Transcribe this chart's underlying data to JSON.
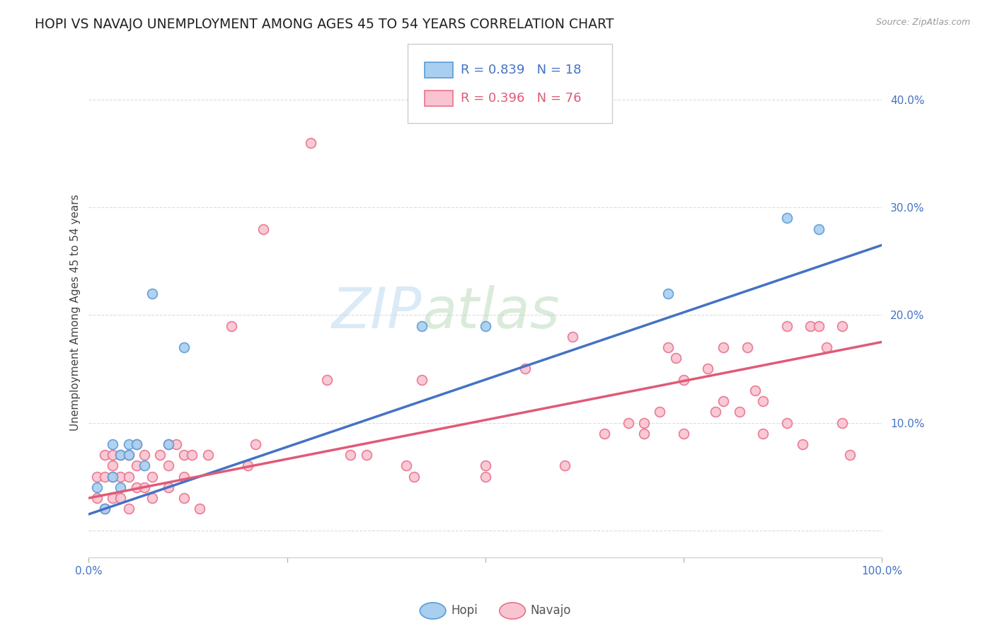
{
  "title": "HOPI VS NAVAJO UNEMPLOYMENT AMONG AGES 45 TO 54 YEARS CORRELATION CHART",
  "source": "Source: ZipAtlas.com",
  "ylabel": "Unemployment Among Ages 45 to 54 years",
  "xlim": [
    0.0,
    1.0
  ],
  "ylim": [
    -0.025,
    0.43
  ],
  "xticks": [
    0.0,
    0.25,
    0.5,
    0.75,
    1.0
  ],
  "xticklabels": [
    "0.0%",
    "",
    "",
    "",
    "100.0%"
  ],
  "yticks": [
    0.0,
    0.1,
    0.2,
    0.3,
    0.4
  ],
  "yticklabels": [
    "",
    "10.0%",
    "20.0%",
    "30.0%",
    "40.0%"
  ],
  "hopi_color": "#A8CFF0",
  "navajo_color": "#F9C4D2",
  "hopi_edge_color": "#5B9BD5",
  "navajo_edge_color": "#E8728A",
  "hopi_line_color": "#4472C4",
  "navajo_line_color": "#E05A76",
  "legend_hopi_R": "0.839",
  "legend_hopi_N": "18",
  "legend_navajo_R": "0.396",
  "legend_navajo_N": "76",
  "hopi_x": [
    0.01,
    0.02,
    0.03,
    0.03,
    0.04,
    0.04,
    0.05,
    0.05,
    0.06,
    0.07,
    0.08,
    0.1,
    0.12,
    0.42,
    0.5,
    0.73,
    0.88,
    0.92
  ],
  "hopi_y": [
    0.04,
    0.02,
    0.05,
    0.08,
    0.04,
    0.07,
    0.07,
    0.08,
    0.08,
    0.06,
    0.22,
    0.08,
    0.17,
    0.19,
    0.19,
    0.22,
    0.29,
    0.28
  ],
  "navajo_x": [
    0.01,
    0.01,
    0.02,
    0.02,
    0.02,
    0.03,
    0.03,
    0.03,
    0.03,
    0.04,
    0.04,
    0.04,
    0.05,
    0.05,
    0.05,
    0.06,
    0.06,
    0.06,
    0.07,
    0.07,
    0.08,
    0.08,
    0.09,
    0.1,
    0.1,
    0.1,
    0.11,
    0.12,
    0.12,
    0.12,
    0.13,
    0.14,
    0.15,
    0.18,
    0.2,
    0.21,
    0.22,
    0.28,
    0.3,
    0.33,
    0.35,
    0.4,
    0.41,
    0.42,
    0.5,
    0.5,
    0.55,
    0.6,
    0.61,
    0.65,
    0.68,
    0.7,
    0.7,
    0.72,
    0.73,
    0.74,
    0.75,
    0.75,
    0.78,
    0.79,
    0.8,
    0.8,
    0.82,
    0.83,
    0.84,
    0.85,
    0.85,
    0.88,
    0.88,
    0.9,
    0.91,
    0.92,
    0.93,
    0.95,
    0.95,
    0.96
  ],
  "navajo_y": [
    0.03,
    0.05,
    0.02,
    0.05,
    0.07,
    0.03,
    0.05,
    0.06,
    0.07,
    0.03,
    0.05,
    0.07,
    0.02,
    0.05,
    0.07,
    0.04,
    0.06,
    0.08,
    0.04,
    0.07,
    0.03,
    0.05,
    0.07,
    0.04,
    0.06,
    0.08,
    0.08,
    0.03,
    0.05,
    0.07,
    0.07,
    0.02,
    0.07,
    0.19,
    0.06,
    0.08,
    0.28,
    0.36,
    0.14,
    0.07,
    0.07,
    0.06,
    0.05,
    0.14,
    0.05,
    0.06,
    0.15,
    0.06,
    0.18,
    0.09,
    0.1,
    0.09,
    0.1,
    0.11,
    0.17,
    0.16,
    0.14,
    0.09,
    0.15,
    0.11,
    0.12,
    0.17,
    0.11,
    0.17,
    0.13,
    0.12,
    0.09,
    0.1,
    0.19,
    0.08,
    0.19,
    0.19,
    0.17,
    0.1,
    0.19,
    0.07
  ],
  "hopi_line_x0": 0.0,
  "hopi_line_x1": 1.0,
  "hopi_line_y0": 0.015,
  "hopi_line_y1": 0.265,
  "navajo_line_x0": 0.0,
  "navajo_line_x1": 1.0,
  "navajo_line_y0": 0.03,
  "navajo_line_y1": 0.175,
  "background_color": "#FFFFFF",
  "grid_color": "#DDDDDD",
  "title_fontsize": 13.5,
  "label_fontsize": 11,
  "tick_fontsize": 11,
  "marker_size": 100,
  "marker_linewidth": 1.2
}
